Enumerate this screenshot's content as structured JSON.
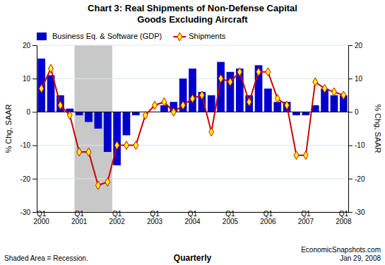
{
  "chart_data": {
    "type": "bar",
    "title": "Chart 3: Real Shipments of Non-Defense Capital\nGoods Excluding Aircraft",
    "categories": [
      "Q1\n2000",
      null,
      null,
      null,
      "Q1\n2001",
      null,
      null,
      null,
      "Q1\n2002",
      null,
      null,
      null,
      "Q1\n2003",
      null,
      null,
      null,
      "Q1\n2004",
      null,
      null,
      null,
      "Q1\n2005",
      null,
      null,
      null,
      "Q1\n2006",
      null,
      null,
      null,
      "Q1\n2007",
      null,
      null,
      null,
      "Q1\n2008"
    ],
    "series": [
      {
        "name": "Business Eq. & Software (GDP)",
        "type": "bar",
        "color": "#0000CC",
        "values": [
          16,
          11,
          5,
          1,
          -1,
          -3,
          -5,
          -12,
          -16,
          -7,
          -1,
          0,
          0,
          2,
          3,
          10,
          13,
          6,
          5,
          15,
          12,
          13,
          5,
          14,
          7,
          3,
          3,
          -1,
          -1,
          2,
          7,
          5,
          5
        ]
      },
      {
        "name": "Shipments",
        "type": "line",
        "color": "#CC0000",
        "marker": "diamond",
        "values": [
          7,
          13,
          2,
          -1,
          -12,
          -12,
          -22,
          -21,
          -10,
          -10,
          -10,
          -1,
          2,
          3,
          0,
          2,
          4,
          5,
          -6,
          10,
          9,
          12,
          3,
          12,
          12,
          4,
          2,
          -13,
          -13,
          9,
          7,
          6,
          5
        ]
      }
    ],
    "shaded_range": {
      "from": 4,
      "to": 7,
      "color": "#C8C8C8"
    },
    "ylabel": "% Chg, SAAR",
    "y2label": "% Chg, SAAR",
    "xlabel": "Quarterly",
    "ylim": [
      -30,
      20
    ],
    "yticks": [
      -30,
      -20,
      -10,
      0,
      10,
      20
    ],
    "y2lim": [
      -30,
      20
    ],
    "y2ticks": [
      -30,
      -20,
      -10,
      0,
      10,
      20
    ],
    "grid": true,
    "legend": "top",
    "annotations": [
      "Shaded Area = Recession.",
      "EconomicSnapshots.com\nJan 29, 2008"
    ]
  }
}
